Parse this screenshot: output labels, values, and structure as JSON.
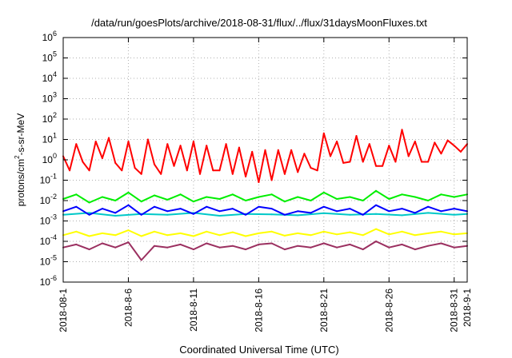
{
  "chart_data": {
    "type": "line",
    "title": "/data/run/goesPlots/archive/2018-08-31/flux/../flux/31daysMoonFluxes.txt",
    "xlabel": "Coordinated Universal Time (UTC)",
    "ylabel": "protons/cm2-s-sr-MeV",
    "ylabel_parts": {
      "pre": "protons/cm",
      "sup": "2",
      "post": "-s-sr-MeV"
    },
    "yscale": "log",
    "ylim": [
      1e-06,
      1000000.0
    ],
    "xlim": [
      "2018-08-01",
      "2018-09-01"
    ],
    "grid": true,
    "legend": "none",
    "y_ticks": [
      {
        "exp": -6,
        "label_base": "10",
        "label_exp": "-6"
      },
      {
        "exp": -5,
        "label_base": "10",
        "label_exp": "-5"
      },
      {
        "exp": -4,
        "label_base": "10",
        "label_exp": "-4"
      },
      {
        "exp": -3,
        "label_base": "10",
        "label_exp": "-3"
      },
      {
        "exp": -2,
        "label_base": "10",
        "label_exp": "-2"
      },
      {
        "exp": -1,
        "label_base": "10",
        "label_exp": "-1"
      },
      {
        "exp": 0,
        "label_base": "10",
        "label_exp": "0"
      },
      {
        "exp": 1,
        "label_base": "10",
        "label_exp": "1"
      },
      {
        "exp": 2,
        "label_base": "10",
        "label_exp": "2"
      },
      {
        "exp": 3,
        "label_base": "10",
        "label_exp": "3"
      },
      {
        "exp": 4,
        "label_base": "10",
        "label_exp": "4"
      },
      {
        "exp": 5,
        "label_base": "10",
        "label_exp": "5"
      },
      {
        "exp": 6,
        "label_base": "10",
        "label_exp": "6"
      }
    ],
    "x_ticks": [
      {
        "date": "2018-08-01",
        "label": "2018-08-1"
      },
      {
        "date": "2018-08-06",
        "label": "2018-8-6"
      },
      {
        "date": "2018-08-11",
        "label": "2018-8-11"
      },
      {
        "date": "2018-08-16",
        "label": "2018-8-16"
      },
      {
        "date": "2018-08-21",
        "label": "2018-8-21"
      },
      {
        "date": "2018-08-26",
        "label": "2018-8-26"
      },
      {
        "date": "2018-08-31",
        "label": "2018-8-31"
      },
      {
        "date": "2018-09-01",
        "label": "2018-9-1"
      }
    ],
    "series": [
      {
        "color": "#ff0000",
        "x": [
          "2018-08-01",
          "2018-08-01T12",
          "2018-08-02",
          "2018-08-02T12",
          "2018-08-03",
          "2018-08-03T12",
          "2018-08-04",
          "2018-08-04T12",
          "2018-08-05",
          "2018-08-05T12",
          "2018-08-06",
          "2018-08-06T12",
          "2018-08-07",
          "2018-08-07T12",
          "2018-08-08",
          "2018-08-08T12",
          "2018-08-09",
          "2018-08-09T12",
          "2018-08-10",
          "2018-08-10T12",
          "2018-08-11",
          "2018-08-11T12",
          "2018-08-12",
          "2018-08-12T12",
          "2018-08-13",
          "2018-08-13T12",
          "2018-08-14",
          "2018-08-14T12",
          "2018-08-15",
          "2018-08-15T12",
          "2018-08-16",
          "2018-08-16T12",
          "2018-08-17",
          "2018-08-17T12",
          "2018-08-18",
          "2018-08-18T12",
          "2018-08-19",
          "2018-08-19T12",
          "2018-08-20",
          "2018-08-20T12",
          "2018-08-21",
          "2018-08-21T12",
          "2018-08-22",
          "2018-08-22T12",
          "2018-08-23",
          "2018-08-23T12",
          "2018-08-24",
          "2018-08-24T12",
          "2018-08-25",
          "2018-08-25T12",
          "2018-08-26",
          "2018-08-26T12",
          "2018-08-27",
          "2018-08-27T12",
          "2018-08-28",
          "2018-08-28T12",
          "2018-08-29",
          "2018-08-29T12",
          "2018-08-30",
          "2018-08-30T12",
          "2018-08-31",
          "2018-08-31T12",
          "2018-09-01"
        ],
        "values": [
          1.5,
          0.3,
          6,
          0.8,
          0.3,
          8,
          1.2,
          12,
          0.7,
          0.3,
          8,
          0.4,
          0.2,
          10,
          0.6,
          0.2,
          6,
          0.5,
          5,
          0.3,
          8,
          0.2,
          5,
          0.3,
          0.3,
          6,
          0.2,
          4,
          0.15,
          2.5,
          0.08,
          3,
          0.1,
          3,
          0.2,
          3,
          0.25,
          2,
          0.4,
          0.3,
          20,
          1.5,
          8,
          0.7,
          0.8,
          15,
          0.8,
          6,
          0.5,
          0.5,
          5,
          0.8,
          30,
          1.5,
          8,
          0.8,
          0.8,
          7,
          2,
          9,
          5,
          2.5,
          6
        ]
      },
      {
        "color": "#00ee00",
        "x": [
          "2018-08-01",
          "2018-08-02",
          "2018-08-03",
          "2018-08-04",
          "2018-08-05",
          "2018-08-06",
          "2018-08-07",
          "2018-08-08",
          "2018-08-09",
          "2018-08-10",
          "2018-08-11",
          "2018-08-12",
          "2018-08-13",
          "2018-08-14",
          "2018-08-15",
          "2018-08-16",
          "2018-08-17",
          "2018-08-18",
          "2018-08-19",
          "2018-08-20",
          "2018-08-21",
          "2018-08-22",
          "2018-08-23",
          "2018-08-24",
          "2018-08-25",
          "2018-08-26",
          "2018-08-27",
          "2018-08-28",
          "2018-08-29",
          "2018-08-30",
          "2018-08-31",
          "2018-09-01"
        ],
        "values": [
          0.012,
          0.02,
          0.008,
          0.015,
          0.01,
          0.025,
          0.009,
          0.018,
          0.011,
          0.02,
          0.009,
          0.015,
          0.012,
          0.02,
          0.01,
          0.015,
          0.02,
          0.009,
          0.015,
          0.01,
          0.025,
          0.012,
          0.015,
          0.01,
          0.03,
          0.012,
          0.02,
          0.015,
          0.01,
          0.02,
          0.015,
          0.02
        ]
      },
      {
        "color": "#00c8c8",
        "x": [
          "2018-08-01",
          "2018-08-03",
          "2018-08-05",
          "2018-08-07",
          "2018-08-09",
          "2018-08-11",
          "2018-08-13",
          "2018-08-15",
          "2018-08-17",
          "2018-08-19",
          "2018-08-21",
          "2018-08-23",
          "2018-08-25",
          "2018-08-27",
          "2018-08-29",
          "2018-08-31",
          "2018-09-01"
        ],
        "values": [
          0.002,
          0.0025,
          0.0018,
          0.0022,
          0.002,
          0.0025,
          0.0018,
          0.0022,
          0.0021,
          0.0019,
          0.0024,
          0.002,
          0.0022,
          0.0019,
          0.0025,
          0.002,
          0.0022
        ]
      },
      {
        "color": "#0000ff",
        "x": [
          "2018-08-01",
          "2018-08-02",
          "2018-08-03",
          "2018-08-04",
          "2018-08-05",
          "2018-08-06",
          "2018-08-07",
          "2018-08-08",
          "2018-08-09",
          "2018-08-10",
          "2018-08-11",
          "2018-08-12",
          "2018-08-13",
          "2018-08-14",
          "2018-08-15",
          "2018-08-16",
          "2018-08-17",
          "2018-08-18",
          "2018-08-19",
          "2018-08-20",
          "2018-08-21",
          "2018-08-22",
          "2018-08-23",
          "2018-08-24",
          "2018-08-25",
          "2018-08-26",
          "2018-08-27",
          "2018-08-28",
          "2018-08-29",
          "2018-08-30",
          "2018-08-31",
          "2018-09-01"
        ],
        "values": [
          0.003,
          0.005,
          0.002,
          0.004,
          0.0025,
          0.006,
          0.002,
          0.005,
          0.003,
          0.004,
          0.0022,
          0.005,
          0.003,
          0.004,
          0.002,
          0.005,
          0.004,
          0.002,
          0.003,
          0.0025,
          0.005,
          0.003,
          0.004,
          0.002,
          0.006,
          0.003,
          0.004,
          0.0025,
          0.005,
          0.003,
          0.004,
          0.003
        ]
      },
      {
        "color": "#ffff00",
        "x": [
          "2018-08-01",
          "2018-08-02",
          "2018-08-03",
          "2018-08-04",
          "2018-08-05",
          "2018-08-06",
          "2018-08-07",
          "2018-08-08",
          "2018-08-09",
          "2018-08-10",
          "2018-08-11",
          "2018-08-12",
          "2018-08-13",
          "2018-08-14",
          "2018-08-15",
          "2018-08-16",
          "2018-08-17",
          "2018-08-18",
          "2018-08-19",
          "2018-08-20",
          "2018-08-21",
          "2018-08-22",
          "2018-08-23",
          "2018-08-24",
          "2018-08-25",
          "2018-08-26",
          "2018-08-27",
          "2018-08-28",
          "2018-08-29",
          "2018-08-30",
          "2018-08-31",
          "2018-09-01"
        ],
        "values": [
          0.0002,
          0.0003,
          0.00018,
          0.00025,
          0.0002,
          0.00035,
          0.00018,
          0.0003,
          0.0002,
          0.00025,
          0.00018,
          0.0003,
          0.0002,
          0.00028,
          0.00018,
          0.00025,
          0.0003,
          0.00019,
          0.00025,
          0.0002,
          0.0003,
          0.00022,
          0.00028,
          0.0002,
          0.0004,
          0.00022,
          0.0003,
          0.0002,
          0.00025,
          0.0003,
          0.00022,
          0.00025
        ]
      },
      {
        "color": "#9b3060",
        "x": [
          "2018-08-01",
          "2018-08-02",
          "2018-08-03",
          "2018-08-04",
          "2018-08-05",
          "2018-08-06",
          "2018-08-07",
          "2018-08-08",
          "2018-08-09",
          "2018-08-10",
          "2018-08-11",
          "2018-08-12",
          "2018-08-13",
          "2018-08-14",
          "2018-08-15",
          "2018-08-16",
          "2018-08-17",
          "2018-08-18",
          "2018-08-19",
          "2018-08-20",
          "2018-08-21",
          "2018-08-22",
          "2018-08-23",
          "2018-08-24",
          "2018-08-25",
          "2018-08-26",
          "2018-08-27",
          "2018-08-28",
          "2018-08-29",
          "2018-08-30",
          "2018-08-31",
          "2018-09-01"
        ],
        "values": [
          5e-05,
          7e-05,
          4e-05,
          8e-05,
          5e-05,
          9e-05,
          1.2e-05,
          6e-05,
          5e-05,
          7e-05,
          4e-05,
          8e-05,
          5e-05,
          6e-05,
          4e-05,
          7e-05,
          8e-05,
          4e-05,
          6e-05,
          5e-05,
          8e-05,
          5e-05,
          7e-05,
          4e-05,
          0.0001,
          5e-05,
          7e-05,
          4e-05,
          6e-05,
          8e-05,
          5e-05,
          6e-05
        ]
      }
    ]
  }
}
